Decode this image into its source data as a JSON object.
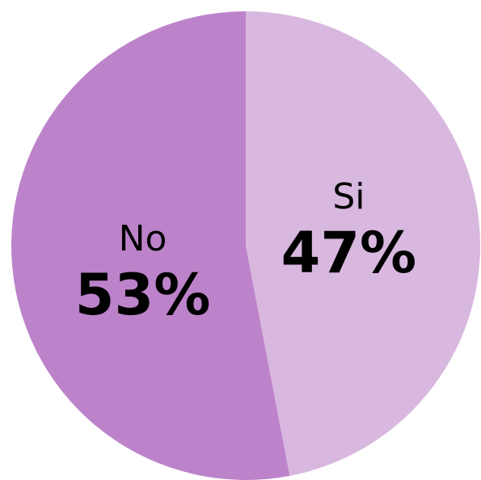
{
  "chart_data": {
    "type": "pie",
    "categories": [
      "Si",
      "No"
    ],
    "values": [
      47,
      53
    ],
    "value_labels": [
      "47%",
      "53%"
    ],
    "colors": [
      "#d8b8de",
      "#bd83ca"
    ]
  }
}
